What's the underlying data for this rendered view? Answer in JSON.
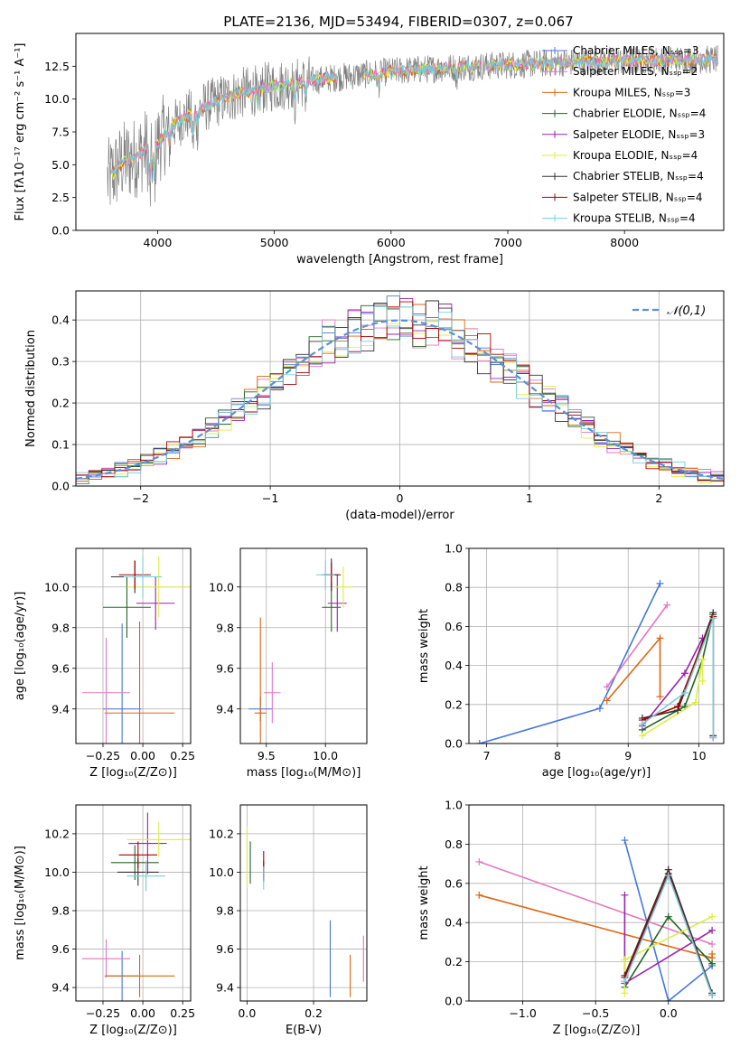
{
  "title": "PLATE=2136, MJD=53494, FIBERID=0307, z=0.067",
  "series_colors": [
    "#4477dd",
    "#e377c2",
    "#dd6611",
    "#226622",
    "#9922aa",
    "#ddee44",
    "#333333",
    "#aa0000",
    "#77ccdd"
  ],
  "legend_labels": [
    "Chabrier MILES, Nₛₛₚ=3",
    "Salpeter MILES, Nₛₛₚ=2",
    "Kroupa MILES, Nₛₛₚ=3",
    "Chabrier ELODIE, Nₛₛₚ=4",
    "Salpeter ELODIE, Nₛₛₚ=3",
    "Kroupa ELODIE, Nₛₛₚ=4",
    "Chabrier STELIB, Nₛₛₚ=4",
    "Salpeter STELIB, Nₛₛₚ=4",
    "Kroupa STELIB, Nₛₛₚ=4"
  ],
  "chart_data": [
    {
      "id": "spectrum",
      "type": "line",
      "xlabel": "wavelength [Angstrom, rest frame]",
      "ylabel": "Flux [fλ10⁻¹⁷ erg cm⁻² s⁻¹ A⁻¹]",
      "xlim": [
        3300,
        8850
      ],
      "ylim": [
        0,
        15
      ],
      "xticks": [
        "4000",
        "5000",
        "6000",
        "7000",
        "8000"
      ],
      "yticks": [
        "0.0",
        "2.5",
        "5.0",
        "7.5",
        "10.0",
        "12.5"
      ],
      "continuum": {
        "x": [
          3570,
          3700,
          3800,
          3900,
          4000,
          4100,
          4300,
          4500,
          4700,
          5000,
          5300,
          5600,
          6000,
          6500,
          7000,
          7500,
          8000,
          8500,
          8800
        ],
        "y": [
          3.8,
          5.2,
          5.5,
          6.2,
          6.6,
          7.8,
          9.0,
          9.8,
          10.4,
          11.0,
          11.4,
          11.7,
          12.1,
          12.4,
          12.6,
          12.8,
          12.9,
          13.0,
          13.0
        ]
      },
      "features": [
        {
          "x": 3934,
          "depth": 3.5
        },
        {
          "x": 3969,
          "depth": 3.0
        },
        {
          "x": 4102,
          "depth": 1.5
        },
        {
          "x": 4304,
          "depth": 2.0
        },
        {
          "x": 4341,
          "depth": 1.2
        },
        {
          "x": 4861,
          "depth": 1.5
        },
        {
          "x": 5175,
          "depth": 1.5
        },
        {
          "x": 5270,
          "depth": 1.0
        },
        {
          "x": 5893,
          "depth": 1.0
        },
        {
          "x": 6563,
          "depth": 0.8
        }
      ],
      "model_gaps": [
        [
          5550,
          5750
        ],
        [
          6780,
          6800
        ],
        [
          7400,
          7420
        ]
      ],
      "legend_position": "top-right"
    },
    {
      "id": "residuals",
      "type": "bar",
      "xlabel": "(data-model)/error",
      "ylabel": "Normed distribution",
      "xlim": [
        -2.5,
        2.5
      ],
      "ylim": [
        0,
        0.47
      ],
      "xticks": [
        "−2",
        "−1",
        "0",
        "1",
        "2"
      ],
      "yticks": [
        "0.0",
        "0.1",
        "0.2",
        "0.3",
        "0.4"
      ],
      "bin_width": 0.1,
      "overlay": {
        "label": "𝒩(0,1)",
        "mu": 0,
        "sigma": 1
      },
      "legend_position": "top-right"
    },
    {
      "id": "age-vs-z",
      "type": "scatter",
      "xlabel": "Z [log₁₀(Z/Z⊙)]",
      "ylabel": "age  [log₁₀(age/yr)]",
      "xlim": [
        -0.42,
        0.3
      ],
      "ylim": [
        9.23,
        10.19
      ],
      "xticks": [
        "−0.25",
        "0.00",
        "0.25"
      ],
      "xtick_values": [
        -0.25,
        0.0,
        0.25
      ],
      "yticks": [
        "9.4",
        "9.6",
        "9.8",
        "10.0"
      ],
      "points": [
        {
          "x": -0.13,
          "y": 9.4,
          "ex": 0.12,
          "ey": 0.42,
          "c": 0
        },
        {
          "x": -0.23,
          "y": 9.48,
          "ex": 0.15,
          "ey": 0.27,
          "c": 1
        },
        {
          "x": -0.02,
          "y": 9.38,
          "ex": 0.22,
          "ey": 0.45,
          "c": 2
        },
        {
          "x": -0.1,
          "y": 9.9,
          "ex": 0.15,
          "ey": 0.15,
          "c": 3
        },
        {
          "x": 0.08,
          "y": 9.92,
          "ex": 0.12,
          "ey": 0.13,
          "c": 4
        },
        {
          "x": 0.1,
          "y": 10.0,
          "ex": 0.2,
          "ey": 0.15,
          "c": 5
        },
        {
          "x": -0.05,
          "y": 10.05,
          "ex": 0.15,
          "ey": 0.08,
          "c": 6
        },
        {
          "x": -0.05,
          "y": 10.06,
          "ex": 0.1,
          "ey": 0.07,
          "c": 7
        },
        {
          "x": 0.0,
          "y": 10.05,
          "ex": 0.12,
          "ey": 0.1,
          "c": 8
        }
      ]
    },
    {
      "id": "age-vs-mass",
      "type": "scatter",
      "xlabel": "mass [log₁₀(M/M⊙)]",
      "ylabel": "",
      "xlim": [
        9.28,
        10.35
      ],
      "ylim": [
        9.23,
        10.19
      ],
      "xticks": [
        "9.5",
        "10.0"
      ],
      "xtick_values": [
        9.5,
        10.0
      ],
      "yticks": [
        "9.4",
        "9.6",
        "9.8",
        "10.0"
      ],
      "points": [
        {
          "x": 9.45,
          "y": 9.4,
          "ex": 0.1,
          "ey": 0.06,
          "c": 0
        },
        {
          "x": 9.55,
          "y": 9.48,
          "ex": 0.07,
          "ey": 0.15,
          "c": 1
        },
        {
          "x": 9.45,
          "y": 9.38,
          "ex": 0.05,
          "ey": 0.47,
          "c": 2
        },
        {
          "x": 10.05,
          "y": 9.9,
          "ex": 0.08,
          "ey": 0.12,
          "c": 3
        },
        {
          "x": 10.1,
          "y": 9.92,
          "ex": 0.08,
          "ey": 0.14,
          "c": 4
        },
        {
          "x": 10.15,
          "y": 10.0,
          "ex": 0.08,
          "ey": 0.1,
          "c": 5
        },
        {
          "x": 10.05,
          "y": 10.06,
          "ex": 0.08,
          "ey": 0.08,
          "c": 6
        },
        {
          "x": 10.05,
          "y": 10.06,
          "ex": 0.06,
          "ey": 0.06,
          "c": 7
        },
        {
          "x": 10.0,
          "y": 10.06,
          "ex": 0.08,
          "ey": 0.07,
          "c": 8
        }
      ]
    },
    {
      "id": "mass-weight-vs-age",
      "type": "line",
      "xlabel": "age  [log₁₀(age/yr)]",
      "ylabel": "mass weight",
      "xlim": [
        6.75,
        10.35
      ],
      "ylim": [
        0,
        1
      ],
      "xticks": [
        "7",
        "8",
        "9",
        "10"
      ],
      "xtick_values": [
        7,
        8,
        9,
        10
      ],
      "yticks": [
        "0.0",
        "0.2",
        "0.4",
        "0.6",
        "0.8",
        "1.0"
      ],
      "ytick_values": [
        0,
        0.2,
        0.4,
        0.6,
        0.8,
        1.0
      ],
      "series": [
        {
          "c": 0,
          "x": [
            6.9,
            8.6,
            9.45
          ],
          "y": [
            0.0,
            0.18,
            0.82
          ]
        },
        {
          "c": 1,
          "x": [
            8.7,
            9.55
          ],
          "y": [
            0.29,
            0.71
          ]
        },
        {
          "c": 2,
          "x": [
            8.7,
            9.45,
            9.45
          ],
          "y": [
            0.22,
            0.54,
            0.24
          ]
        },
        {
          "c": 3,
          "x": [
            9.2,
            9.8,
            10.05,
            10.2
          ],
          "y": [
            0.07,
            0.19,
            0.43,
            0.66
          ]
        },
        {
          "c": 4,
          "x": [
            9.2,
            9.8,
            10.05
          ],
          "y": [
            0.09,
            0.36,
            0.54
          ]
        },
        {
          "c": 5,
          "x": [
            9.2,
            9.95,
            10.05,
            10.05
          ],
          "y": [
            0.04,
            0.21,
            0.43,
            0.32
          ]
        },
        {
          "c": 6,
          "x": [
            9.2,
            9.7,
            10.2,
            10.2
          ],
          "y": [
            0.13,
            0.17,
            0.67,
            0.04
          ]
        },
        {
          "c": 7,
          "x": [
            9.2,
            9.7,
            10.2,
            10.2
          ],
          "y": [
            0.12,
            0.19,
            0.65,
            0.03
          ]
        },
        {
          "c": 8,
          "x": [
            9.2,
            9.8,
            10.2,
            10.2
          ],
          "y": [
            0.1,
            0.26,
            0.64,
            0.03
          ]
        }
      ]
    },
    {
      "id": "mass-vs-z",
      "type": "scatter",
      "xlabel": "Z [log₁₀(Z/Z⊙)]",
      "ylabel": "mass [log₁₀(M/M⊙)]",
      "xlim": [
        -0.42,
        0.3
      ],
      "ylim": [
        9.33,
        10.35
      ],
      "xticks": [
        "−0.25",
        "0.00",
        "0.25"
      ],
      "xtick_values": [
        -0.25,
        0.0,
        0.25
      ],
      "yticks": [
        "9.4",
        "9.6",
        "9.8",
        "10.0",
        "10.2"
      ],
      "points": [
        {
          "x": -0.13,
          "y": 9.46,
          "ex": 0.1,
          "ey": 0.13,
          "c": 0
        },
        {
          "x": -0.23,
          "y": 9.55,
          "ex": 0.15,
          "ey": 0.1,
          "c": 1
        },
        {
          "x": -0.02,
          "y": 9.46,
          "ex": 0.22,
          "ey": 0.11,
          "c": 2
        },
        {
          "x": -0.05,
          "y": 10.05,
          "ex": 0.15,
          "ey": 0.09,
          "c": 3
        },
        {
          "x": 0.03,
          "y": 10.15,
          "ex": 0.12,
          "ey": 0.16,
          "c": 4
        },
        {
          "x": 0.1,
          "y": 10.17,
          "ex": 0.2,
          "ey": 0.09,
          "c": 5
        },
        {
          "x": -0.03,
          "y": 10.0,
          "ex": 0.13,
          "ey": 0.07,
          "c": 6
        },
        {
          "x": -0.03,
          "y": 10.09,
          "ex": 0.12,
          "ey": 0.07,
          "c": 7
        },
        {
          "x": 0.02,
          "y": 9.98,
          "ex": 0.12,
          "ey": 0.08,
          "c": 8
        }
      ]
    },
    {
      "id": "mass-vs-ebv",
      "type": "scatter",
      "xlabel": "E(B-V)",
      "ylabel": "",
      "xlim": [
        -0.02,
        0.36
      ],
      "ylim": [
        9.33,
        10.35
      ],
      "xticks": [
        "0.0",
        "0.2"
      ],
      "xtick_values": [
        0.0,
        0.2
      ],
      "yticks": [
        "9.4",
        "9.6",
        "9.8",
        "10.0",
        "10.2"
      ],
      "points": [
        {
          "x": 0.25,
          "y": 9.55,
          "ex": 0,
          "ey": 0.2,
          "c": 0
        },
        {
          "x": 0.35,
          "y": 9.55,
          "ex": 0,
          "ey": 0.12,
          "c": 1
        },
        {
          "x": 0.31,
          "y": 9.46,
          "ex": 0,
          "ey": 0.11,
          "c": 2
        },
        {
          "x": 0.01,
          "y": 10.05,
          "ex": 0,
          "ey": 0.11,
          "c": 3
        },
        {
          "x": 0.0,
          "y": 10.08,
          "ex": 0,
          "ey": 0.16,
          "c": 5
        },
        {
          "x": 0.05,
          "y": 10.01,
          "ex": 0,
          "ey": 0.05,
          "c": 6
        },
        {
          "x": 0.05,
          "y": 10.03,
          "ex": 0,
          "ey": 0.08,
          "c": 7
        },
        {
          "x": 0.05,
          "y": 9.97,
          "ex": 0,
          "ey": 0.06,
          "c": 8
        }
      ]
    },
    {
      "id": "mass-weight-vs-z",
      "type": "line",
      "xlabel": "Z [log₁₀(Z/Z⊙)]",
      "ylabel": "mass weight",
      "xlim": [
        -1.37,
        0.38
      ],
      "ylim": [
        0,
        1
      ],
      "xticks": [
        "−1.0",
        "−0.5",
        "0.0"
      ],
      "xtick_values": [
        -1.0,
        -0.5,
        0.0
      ],
      "yticks": [
        "0.0",
        "0.2",
        "0.4",
        "0.6",
        "0.8",
        "1.0"
      ],
      "ytick_values": [
        0,
        0.2,
        0.4,
        0.6,
        0.8,
        1.0
      ],
      "series": [
        {
          "c": 0,
          "x": [
            -0.3,
            0.0,
            0.3
          ],
          "y": [
            0.82,
            0.0,
            0.18
          ]
        },
        {
          "c": 1,
          "x": [
            -1.3,
            0.3
          ],
          "y": [
            0.71,
            0.29
          ]
        },
        {
          "c": 2,
          "x": [
            -1.3,
            0.3,
            0.3
          ],
          "y": [
            0.54,
            0.22,
            0.24
          ]
        },
        {
          "c": 3,
          "x": [
            -0.3,
            0.0,
            0.3
          ],
          "y": [
            0.07,
            0.43,
            0.19
          ]
        },
        {
          "c": 4,
          "x": [
            -0.3,
            -0.3,
            0.3
          ],
          "y": [
            0.54,
            0.09,
            0.36
          ]
        },
        {
          "c": 5,
          "x": [
            -0.3,
            -0.3,
            0.3
          ],
          "y": [
            0.04,
            0.21,
            0.43
          ]
        },
        {
          "c": 6,
          "x": [
            -0.3,
            0.0,
            0.3
          ],
          "y": [
            0.13,
            0.67,
            0.04
          ]
        },
        {
          "c": 7,
          "x": [
            -0.3,
            0.0,
            0.3
          ],
          "y": [
            0.12,
            0.65,
            0.03
          ]
        },
        {
          "c": 8,
          "x": [
            -0.3,
            0.0,
            0.3
          ],
          "y": [
            0.1,
            0.64,
            0.03
          ]
        }
      ]
    }
  ]
}
